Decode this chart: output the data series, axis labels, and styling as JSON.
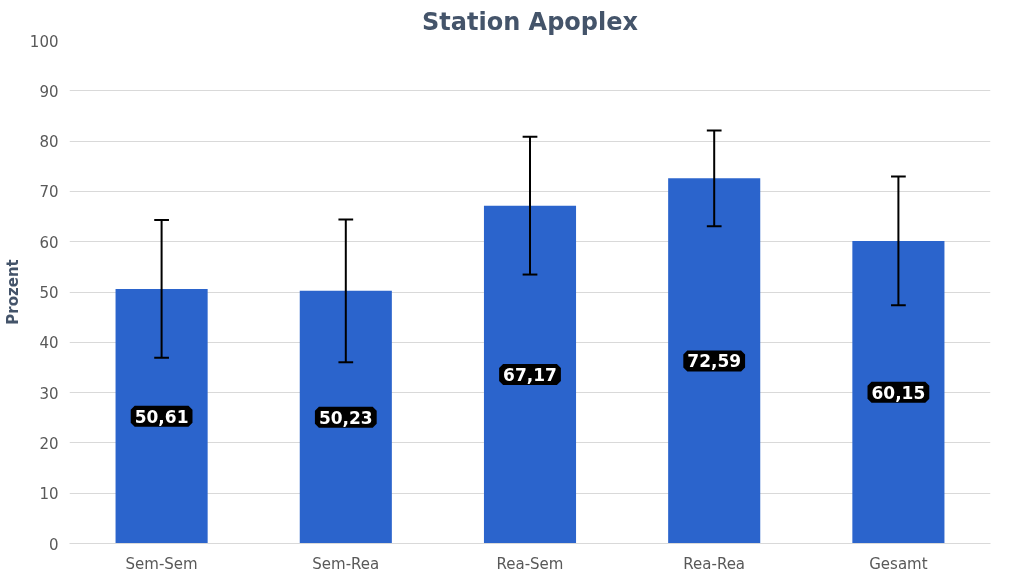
{
  "chart_data": {
    "type": "bar",
    "title": "Station Apoplex",
    "ylabel": "Prozent",
    "categories": [
      "Sem-Sem",
      "Sem-Rea",
      "Rea-Sem",
      "Rea-Rea",
      "Gesamt"
    ],
    "values": [
      50.61,
      50.23,
      67.17,
      72.59,
      60.15
    ],
    "value_labels": [
      "50,61",
      "50,23",
      "67,17",
      "72,59",
      "60,15"
    ],
    "errors": [
      13.7,
      14.2,
      13.7,
      9.5,
      12.8
    ],
    "color": "#2b64cc",
    "ylim": [
      0,
      100
    ],
    "yticks": [
      0,
      10,
      20,
      30,
      40,
      50,
      60,
      70,
      80,
      90,
      100
    ],
    "grid": "y"
  }
}
